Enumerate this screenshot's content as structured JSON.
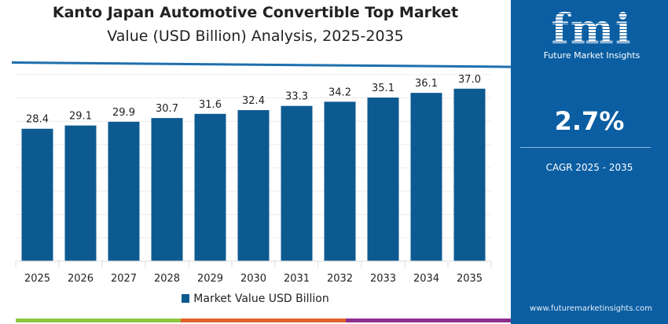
{
  "chart_data": {
    "type": "bar",
    "title": "Kanto Japan Automotive Convertible Top Market",
    "subtitle": "Value (USD Billion) Analysis, 2025-2035",
    "categories": [
      "2025",
      "2026",
      "2027",
      "2028",
      "2029",
      "2030",
      "2031",
      "2032",
      "2033",
      "2034",
      "2035"
    ],
    "series": [
      {
        "name": "Market Value USD Billion",
        "values": [
          28.4,
          29.1,
          29.9,
          30.7,
          31.6,
          32.4,
          33.3,
          34.2,
          35.1,
          36.1,
          37.0
        ]
      }
    ],
    "ylim": [
      0,
      40
    ],
    "grid": true,
    "legend": "bottom",
    "xlabel": "",
    "ylabel": ""
  },
  "colors": {
    "bar": "#0d5a91",
    "panel": "#0b5ea2",
    "strip": [
      "#8dc63f",
      "#e2622b",
      "#8e2e8f"
    ]
  },
  "panel": {
    "logo": "fmi",
    "logo_sub": "Future Market Insights",
    "cagr_value": "2.7%",
    "cagr_label": "CAGR 2025 - 2035",
    "website": "www.futuremarketinsights.com"
  }
}
